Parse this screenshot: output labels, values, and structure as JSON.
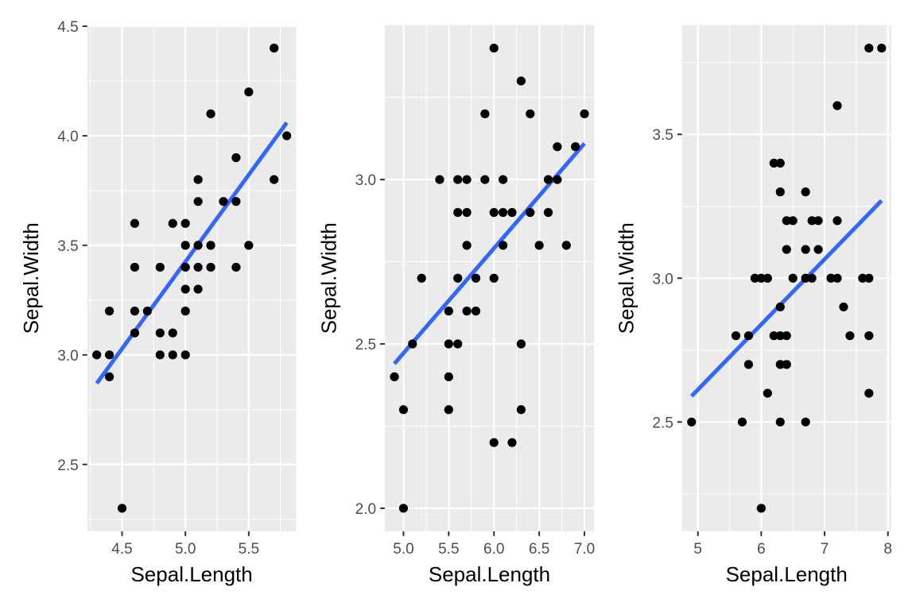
{
  "chart_data": [
    {
      "type": "scatter",
      "xlabel": "Sepal.Length",
      "ylabel": "Sepal.Width",
      "xlim": [
        4.3,
        5.8
      ],
      "ylim": [
        2.3,
        4.4
      ],
      "x_ticks": [
        4.5,
        5.0,
        5.5
      ],
      "x_tick_labels": [
        "4.5",
        "5.0",
        "5.5"
      ],
      "y_ticks": [
        2.5,
        3.0,
        3.5,
        4.0,
        4.5
      ],
      "y_tick_labels": [
        "2.5",
        "3.0",
        "3.5",
        "4.0",
        "4.5"
      ],
      "grid": true,
      "points": [
        [
          4.3,
          3.0
        ],
        [
          4.4,
          2.9
        ],
        [
          4.4,
          3.0
        ],
        [
          4.4,
          3.2
        ],
        [
          4.5,
          2.3
        ],
        [
          4.6,
          3.1
        ],
        [
          4.6,
          3.2
        ],
        [
          4.6,
          3.4
        ],
        [
          4.6,
          3.6
        ],
        [
          4.7,
          3.2
        ],
        [
          4.8,
          3.0
        ],
        [
          4.8,
          3.1
        ],
        [
          4.8,
          3.4
        ],
        [
          4.9,
          3.0
        ],
        [
          4.9,
          3.1
        ],
        [
          4.9,
          3.6
        ],
        [
          5.0,
          3.0
        ],
        [
          5.0,
          3.2
        ],
        [
          5.0,
          3.3
        ],
        [
          5.0,
          3.4
        ],
        [
          5.0,
          3.5
        ],
        [
          5.0,
          3.6
        ],
        [
          5.1,
          3.3
        ],
        [
          5.1,
          3.4
        ],
        [
          5.1,
          3.5
        ],
        [
          5.1,
          3.7
        ],
        [
          5.1,
          3.8
        ],
        [
          5.2,
          3.4
        ],
        [
          5.2,
          3.5
        ],
        [
          5.2,
          4.1
        ],
        [
          5.3,
          3.7
        ],
        [
          5.4,
          3.4
        ],
        [
          5.4,
          3.7
        ],
        [
          5.4,
          3.9
        ],
        [
          5.5,
          3.5
        ],
        [
          5.5,
          4.2
        ],
        [
          5.7,
          3.8
        ],
        [
          5.7,
          4.4
        ],
        [
          5.8,
          4.0
        ]
      ],
      "fit_line": {
        "x": [
          4.3,
          5.8
        ],
        "y": [
          2.87,
          4.06
        ],
        "color": "#3366ff"
      }
    },
    {
      "type": "scatter",
      "xlabel": "Sepal.Length",
      "ylabel": "Sepal.Width",
      "xlim": [
        4.9,
        7.0
      ],
      "ylim": [
        2.0,
        3.4
      ],
      "x_ticks": [
        5.0,
        5.5,
        6.0,
        6.5,
        7.0
      ],
      "x_tick_labels": [
        "5.0",
        "5.5",
        "6.0",
        "6.5",
        "7.0"
      ],
      "y_ticks": [
        2.0,
        2.5,
        3.0
      ],
      "y_tick_labels": [
        "2.0",
        "2.5",
        "3.0"
      ],
      "grid": true,
      "points": [
        [
          4.9,
          2.4
        ],
        [
          5.0,
          2.0
        ],
        [
          5.0,
          2.3
        ],
        [
          5.1,
          2.5
        ],
        [
          5.2,
          2.7
        ],
        [
          5.4,
          3.0
        ],
        [
          5.5,
          2.3
        ],
        [
          5.5,
          2.4
        ],
        [
          5.5,
          2.5
        ],
        [
          5.5,
          2.6
        ],
        [
          5.6,
          2.5
        ],
        [
          5.6,
          2.7
        ],
        [
          5.6,
          2.9
        ],
        [
          5.6,
          3.0
        ],
        [
          5.7,
          2.6
        ],
        [
          5.7,
          2.8
        ],
        [
          5.7,
          2.9
        ],
        [
          5.7,
          3.0
        ],
        [
          5.8,
          2.6
        ],
        [
          5.8,
          2.7
        ],
        [
          5.9,
          3.0
        ],
        [
          5.9,
          3.2
        ],
        [
          6.0,
          2.2
        ],
        [
          6.0,
          2.7
        ],
        [
          6.0,
          2.9
        ],
        [
          6.0,
          3.4
        ],
        [
          6.1,
          2.8
        ],
        [
          6.1,
          2.9
        ],
        [
          6.1,
          3.0
        ],
        [
          6.2,
          2.2
        ],
        [
          6.2,
          2.9
        ],
        [
          6.3,
          2.3
        ],
        [
          6.3,
          2.5
        ],
        [
          6.3,
          3.3
        ],
        [
          6.4,
          2.9
        ],
        [
          6.4,
          3.2
        ],
        [
          6.5,
          2.8
        ],
        [
          6.6,
          2.9
        ],
        [
          6.6,
          3.0
        ],
        [
          6.7,
          3.0
        ],
        [
          6.7,
          3.1
        ],
        [
          6.8,
          2.8
        ],
        [
          6.9,
          3.1
        ],
        [
          7.0,
          3.2
        ]
      ],
      "fit_line": {
        "x": [
          4.9,
          7.0
        ],
        "y": [
          2.44,
          3.11
        ],
        "color": "#3366ff"
      }
    },
    {
      "type": "scatter",
      "xlabel": "Sepal.Length",
      "ylabel": "Sepal.Width",
      "xlim": [
        4.9,
        7.9
      ],
      "ylim": [
        2.2,
        3.8
      ],
      "x_ticks": [
        5,
        6,
        7,
        8
      ],
      "x_tick_labels": [
        "5",
        "6",
        "7",
        "8"
      ],
      "y_ticks": [
        2.5,
        3.0,
        3.5
      ],
      "y_tick_labels": [
        "2.5",
        "3.0",
        "3.5"
      ],
      "grid": true,
      "points": [
        [
          4.9,
          2.5
        ],
        [
          5.6,
          2.8
        ],
        [
          5.7,
          2.5
        ],
        [
          5.8,
          2.7
        ],
        [
          5.8,
          2.8
        ],
        [
          5.9,
          3.0
        ],
        [
          6.0,
          2.2
        ],
        [
          6.0,
          3.0
        ],
        [
          6.1,
          2.6
        ],
        [
          6.1,
          3.0
        ],
        [
          6.2,
          2.8
        ],
        [
          6.2,
          3.4
        ],
        [
          6.3,
          2.5
        ],
        [
          6.3,
          2.7
        ],
        [
          6.3,
          2.8
        ],
        [
          6.3,
          2.9
        ],
        [
          6.3,
          3.3
        ],
        [
          6.3,
          3.4
        ],
        [
          6.4,
          2.7
        ],
        [
          6.4,
          2.8
        ],
        [
          6.4,
          3.1
        ],
        [
          6.4,
          3.2
        ],
        [
          6.5,
          3.0
        ],
        [
          6.5,
          3.2
        ],
        [
          6.7,
          2.5
        ],
        [
          6.7,
          3.0
        ],
        [
          6.7,
          3.1
        ],
        [
          6.7,
          3.3
        ],
        [
          6.8,
          3.0
        ],
        [
          6.8,
          3.2
        ],
        [
          6.9,
          3.1
        ],
        [
          6.9,
          3.2
        ],
        [
          7.1,
          3.0
        ],
        [
          7.2,
          3.0
        ],
        [
          7.2,
          3.2
        ],
        [
          7.2,
          3.6
        ],
        [
          7.3,
          2.9
        ],
        [
          7.4,
          2.8
        ],
        [
          7.6,
          3.0
        ],
        [
          7.7,
          2.6
        ],
        [
          7.7,
          2.8
        ],
        [
          7.7,
          3.0
        ],
        [
          7.7,
          3.8
        ],
        [
          7.9,
          3.8
        ]
      ],
      "fit_line": {
        "x": [
          4.9,
          7.9
        ],
        "y": [
          2.59,
          3.27
        ],
        "color": "#3366ff"
      }
    }
  ]
}
